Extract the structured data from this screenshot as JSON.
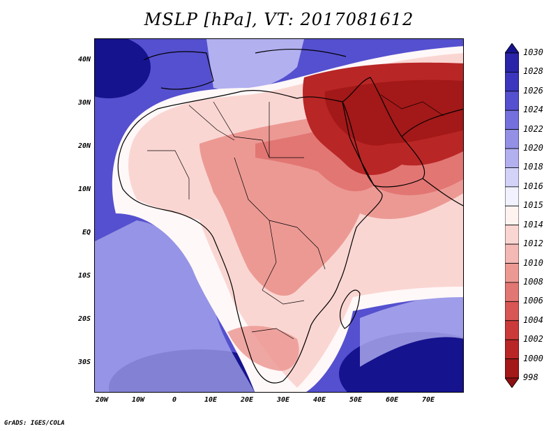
{
  "title": "MSLP [hPa], VT: 2017081612",
  "credit": "GrADS: IGES/COLA",
  "axes": {
    "lat_labels": [
      "40N",
      "30N",
      "20N",
      "10N",
      "EQ",
      "10S",
      "20S",
      "30S"
    ],
    "lon_labels": [
      "20W",
      "10W",
      "0",
      "10E",
      "20E",
      "30E",
      "40E",
      "50E",
      "60E",
      "70E"
    ]
  },
  "colorbar": {
    "levels": [
      "1030",
      "1028",
      "1026",
      "1024",
      "1022",
      "1020",
      "1018",
      "1016",
      "1015",
      "1014",
      "1012",
      "1010",
      "1008",
      "1006",
      "1004",
      "1002",
      "1000",
      "998"
    ],
    "colors": [
      "#16138f",
      "#2a24a8",
      "#3b36bd",
      "#5550cf",
      "#7470dd",
      "#9390e6",
      "#b2b0ef",
      "#d3d2f8",
      "#f2f2ff",
      "#fff3f0",
      "#fad6d2",
      "#f4b9b5",
      "#ec9994",
      "#e27673",
      "#d85655",
      "#cb3a3a",
      "#b92626",
      "#a31818",
      "#8c0f12"
    ]
  },
  "map_colors": {
    "ocean_west": "#5550cf",
    "ocean_deep": "#16138f",
    "pale_blue": "#b2b0ef",
    "white_band": "#fff8f8",
    "land_light": "#fad6d2",
    "land_mid": "#ec9994",
    "land_warm": "#e27673",
    "low_core": "#b92626",
    "low_deep": "#a31818"
  }
}
